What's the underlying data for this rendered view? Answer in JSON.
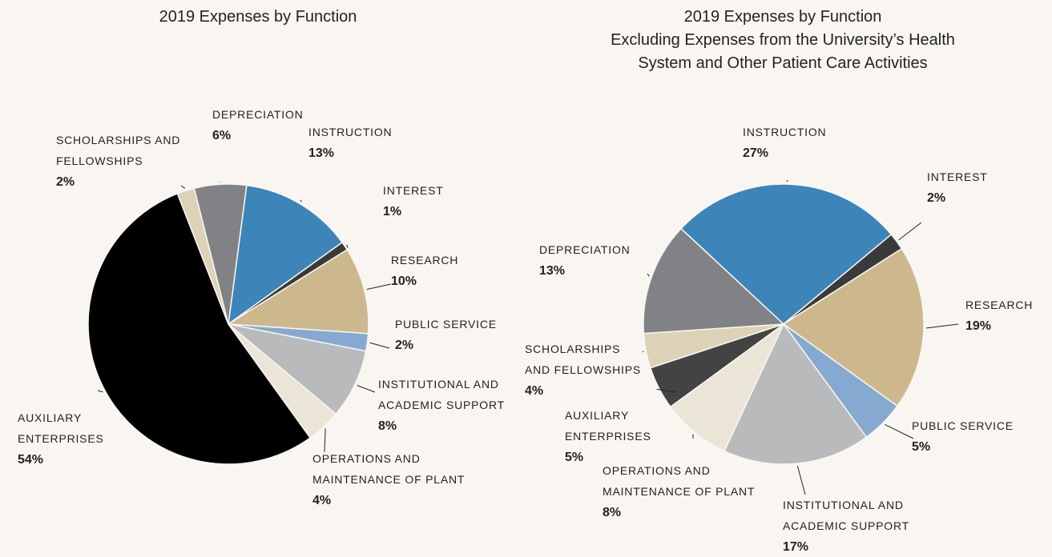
{
  "chart_data": [
    {
      "type": "pie",
      "title": "2019 Expenses by Function",
      "categories": [
        "INSTRUCTION",
        "INTEREST",
        "RESEARCH",
        "PUBLIC SERVICE",
        "INSTITUTIONAL AND ACADEMIC SUPPORT",
        "OPERATIONS AND MAINTENANCE OF PLANT",
        "AUXILIARY ENTERPRISES",
        "SCHOLARSHIPS AND FELLOWSHIPS",
        "DEPRECIATION"
      ],
      "values": [
        13,
        1,
        10,
        2,
        8,
        4,
        54,
        2,
        6
      ],
      "value_labels": [
        "13%",
        "1%",
        "10%",
        "2%",
        "8%",
        "4%",
        "54%",
        "2%",
        "6%"
      ],
      "colors": [
        "#3d85b8",
        "#3a3a3a",
        "#cdb88e",
        "#85a9d0",
        "#b9babb",
        "#ebe5d8",
        "#000000",
        "#ddd1b8",
        "#818286"
      ]
    },
    {
      "type": "pie",
      "title": "2019 Expenses by Function",
      "subtitle": "Excluding Expenses from the University’s Health System and Other Patient Care Activities",
      "categories": [
        "INSTRUCTION",
        "INTEREST",
        "RESEARCH",
        "PUBLIC SERVICE",
        "INSTITUTIONAL AND ACADEMIC SUPPORT",
        "OPERATIONS AND MAINTENANCE OF PLANT",
        "AUXILIARY ENTERPRISES",
        "SCHOLARSHIPS AND FELLOWSHIPS",
        "DEPRECIATION"
      ],
      "values": [
        27,
        2,
        19,
        5,
        17,
        8,
        5,
        4,
        13
      ],
      "value_labels": [
        "27%",
        "2%",
        "19%",
        "5%",
        "17%",
        "8%",
        "5%",
        "4%",
        "13%"
      ],
      "colors": [
        "#3d85b8",
        "#3a3a3a",
        "#cdb88e",
        "#85a9d0",
        "#b9babb",
        "#ebe5d8",
        "#434343",
        "#ddd1b8",
        "#818286"
      ]
    }
  ]
}
